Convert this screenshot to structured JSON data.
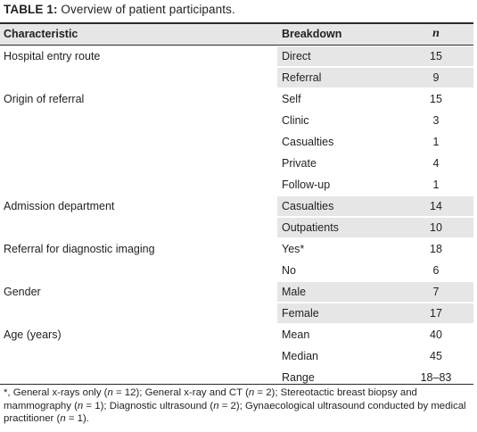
{
  "caption": {
    "label": "TABLE 1:",
    "text": " Overview of patient participants."
  },
  "header": {
    "characteristic": "Characteristic",
    "breakdown": "Breakdown",
    "n": "n"
  },
  "rows": [
    {
      "characteristic": "Hospital entry route",
      "breakdown": "Direct",
      "n": "15",
      "shaded": true
    },
    {
      "characteristic": "",
      "breakdown": "Referral",
      "n": "9",
      "shaded": true
    },
    {
      "characteristic": "Origin of referral",
      "breakdown": "Self",
      "n": "15",
      "shaded": false
    },
    {
      "characteristic": "",
      "breakdown": "Clinic",
      "n": "3",
      "shaded": false
    },
    {
      "characteristic": "",
      "breakdown": "Casualties",
      "n": "1",
      "shaded": false
    },
    {
      "characteristic": "",
      "breakdown": "Private",
      "n": "4",
      "shaded": false
    },
    {
      "characteristic": "",
      "breakdown": "Follow-up",
      "n": "1",
      "shaded": false
    },
    {
      "characteristic": "Admission department",
      "breakdown": "Casualties",
      "n": "14",
      "shaded": true
    },
    {
      "characteristic": "",
      "breakdown": "Outpatients",
      "n": "10",
      "shaded": true
    },
    {
      "characteristic": "Referral for diagnostic imaging",
      "breakdown": "Yes*",
      "n": "18",
      "shaded": false
    },
    {
      "characteristic": "",
      "breakdown": "No",
      "n": "6",
      "shaded": false
    },
    {
      "characteristic": "Gender",
      "breakdown": "Male",
      "n": "7",
      "shaded": true
    },
    {
      "characteristic": "",
      "breakdown": "Female",
      "n": "17",
      "shaded": true
    },
    {
      "characteristic": "Age (years)",
      "breakdown": "Mean",
      "n": "40",
      "shaded": false
    },
    {
      "characteristic": "",
      "breakdown": "Median",
      "n": "45",
      "shaded": false
    },
    {
      "characteristic": "",
      "breakdown": "Range",
      "n": "18–83",
      "shaded": false
    }
  ],
  "footnote": "*, General x-rays only (n = 12); General x-ray and CT (n = 2); Stereotactic breast biopsy and mammography (n = 1); Diagnostic ultrasound (n = 2); Gynaecological ultrasound conducted by medical practitioner (n = 1).",
  "colors": {
    "shade": "#e6e6e7",
    "rule": "#2a2a2a",
    "text": "#231f20"
  }
}
